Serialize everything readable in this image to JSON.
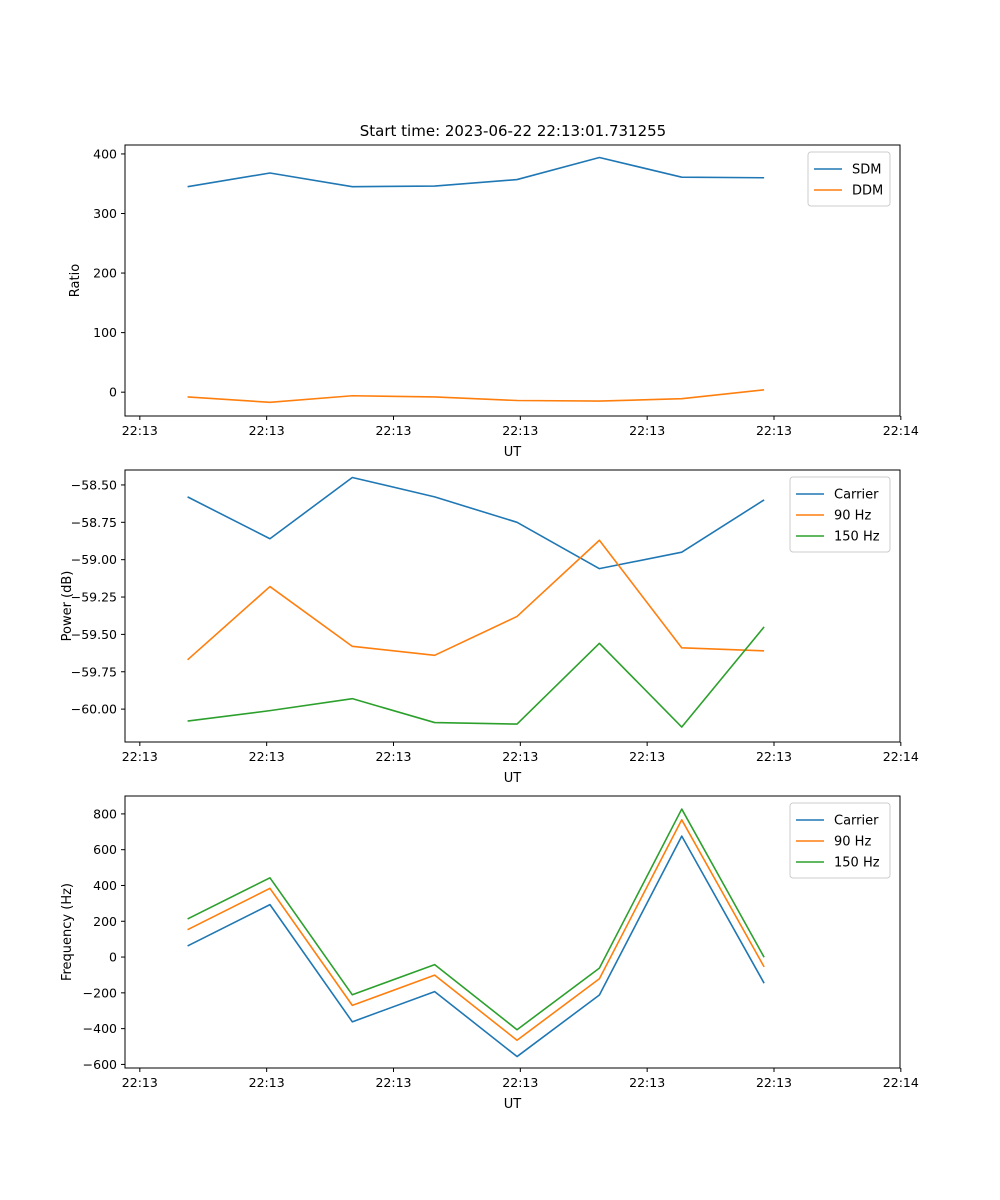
{
  "figure_title": "Start time: 2023-06-22 22:13:01.731255",
  "colors": {
    "blue": "#1f77b4",
    "orange": "#ff7f0e",
    "green": "#2ca02c"
  },
  "chart_data": [
    {
      "type": "line",
      "title": "Start time: 2023-06-22 22:13:01.731255",
      "xlabel": "UT",
      "ylabel": "Ratio",
      "x": [
        1,
        2,
        3,
        4,
        5,
        6,
        7,
        8
      ],
      "xtick_labels": [
        "22:13",
        "22:13",
        "22:13",
        "22:13",
        "22:13",
        "22:13",
        "22:14"
      ],
      "ylim": [
        -40,
        415
      ],
      "yticks": [
        0,
        100,
        200,
        300,
        400
      ],
      "ytick_labels": [
        "0",
        "100",
        "200",
        "300",
        "400"
      ],
      "legend": "top-right",
      "grid": false,
      "series": [
        {
          "name": "SDM",
          "color": "#1f77b4",
          "values": [
            345,
            368,
            345,
            346,
            357,
            394,
            361,
            360
          ]
        },
        {
          "name": "DDM",
          "color": "#ff7f0e",
          "values": [
            -8,
            -17,
            -6,
            -8,
            -14,
            -15,
            -11,
            4
          ]
        }
      ]
    },
    {
      "type": "line",
      "xlabel": "UT",
      "ylabel": "Power (dB)",
      "x": [
        1,
        2,
        3,
        4,
        5,
        6,
        7,
        8
      ],
      "xtick_labels": [
        "22:13",
        "22:13",
        "22:13",
        "22:13",
        "22:13",
        "22:13",
        "22:14"
      ],
      "ylim": [
        -60.22,
        -58.4
      ],
      "yticks": [
        -60.0,
        -59.75,
        -59.5,
        -59.25,
        -59.0,
        -58.75,
        -58.5
      ],
      "ytick_labels": [
        "−60.00",
        "−59.75",
        "−59.50",
        "−59.25",
        "−59.00",
        "−58.75",
        "−58.50"
      ],
      "legend": "top-right",
      "grid": false,
      "series": [
        {
          "name": "Carrier",
          "color": "#1f77b4",
          "values": [
            -58.58,
            -58.86,
            -58.45,
            -58.58,
            -58.75,
            -59.06,
            -58.95,
            -58.6
          ]
        },
        {
          "name": "90 Hz",
          "color": "#ff7f0e",
          "values": [
            -59.67,
            -59.18,
            -59.58,
            -59.64,
            -59.38,
            -58.87,
            -59.59,
            -59.61
          ]
        },
        {
          "name": "150 Hz",
          "color": "#2ca02c",
          "values": [
            -60.08,
            -60.01,
            -59.93,
            -60.09,
            -60.1,
            -59.56,
            -60.12,
            -59.45
          ]
        }
      ]
    },
    {
      "type": "line",
      "xlabel": "UT",
      "ylabel": "Frequency (Hz)",
      "x": [
        1,
        2,
        3,
        4,
        5,
        6,
        7,
        8
      ],
      "xtick_labels": [
        "22:13",
        "22:13",
        "22:13",
        "22:13",
        "22:13",
        "22:13",
        "22:14"
      ],
      "ylim": [
        -620,
        900
      ],
      "yticks": [
        -600,
        -400,
        -200,
        0,
        200,
        400,
        600,
        800
      ],
      "ytick_labels": [
        "−600",
        "−400",
        "−200",
        "0",
        "200",
        "400",
        "600",
        "800"
      ],
      "legend": "top-right",
      "grid": false,
      "series": [
        {
          "name": "Carrier",
          "color": "#1f77b4",
          "values": [
            62,
            293,
            -362,
            -193,
            -556,
            -212,
            676,
            -146
          ]
        },
        {
          "name": "90 Hz",
          "color": "#ff7f0e",
          "values": [
            153,
            384,
            -270,
            -101,
            -465,
            -121,
            767,
            -55
          ]
        },
        {
          "name": "150 Hz",
          "color": "#2ca02c",
          "values": [
            213,
            443,
            -211,
            -42,
            -406,
            -62,
            827,
            -1
          ]
        }
      ]
    }
  ]
}
